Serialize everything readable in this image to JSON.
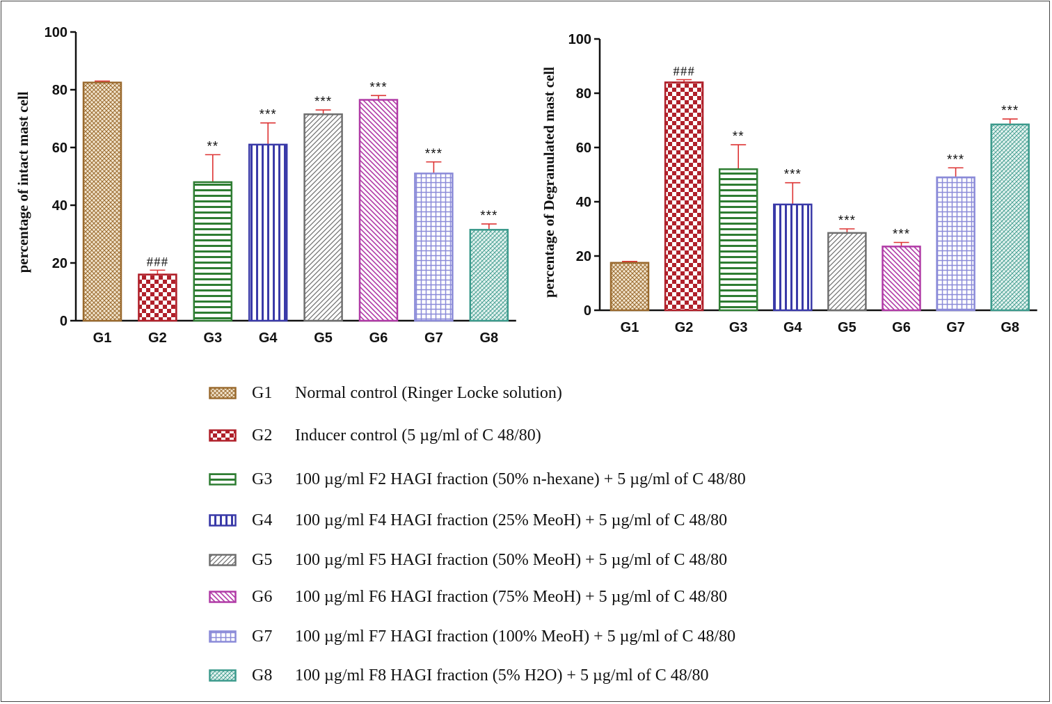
{
  "chart_data": [
    {
      "type": "bar",
      "title": "",
      "xlabel": "",
      "ylabel": "percentage of intact mast cell",
      "ylim": [
        0,
        100
      ],
      "yticks": [
        0,
        20,
        40,
        60,
        80,
        100
      ],
      "categories": [
        "G1",
        "G2",
        "G3",
        "G4",
        "G5",
        "G6",
        "G7",
        "G8"
      ],
      "values": [
        82.5,
        16,
        48,
        61,
        71.5,
        76.5,
        51,
        31.5
      ],
      "errors": [
        0.5,
        1.5,
        9.5,
        7.5,
        1.5,
        1.5,
        4,
        2
      ],
      "annotations": [
        "",
        "###",
        "**",
        "***",
        "***",
        "***",
        "***",
        "***"
      ]
    },
    {
      "type": "bar",
      "title": "",
      "xlabel": "",
      "ylabel": "percentage of Degranulated mast cell",
      "ylim": [
        0,
        100
      ],
      "yticks": [
        0,
        20,
        40,
        60,
        80,
        100
      ],
      "categories": [
        "G1",
        "G2",
        "G3",
        "G4",
        "G5",
        "G6",
        "G7",
        "G8"
      ],
      "values": [
        17.5,
        84,
        52,
        39,
        28.5,
        23.5,
        49,
        68.5
      ],
      "errors": [
        0.5,
        1,
        9,
        8,
        1.5,
        1.5,
        3.5,
        2
      ],
      "annotations": [
        "",
        "###",
        "**",
        "***",
        "***",
        "***",
        "***",
        "***"
      ]
    }
  ],
  "legend": [
    {
      "group": "G1",
      "text": "Normal control (Ringer Locke solution)"
    },
    {
      "group": "G2",
      "text": "Inducer control (5 µg/ml of C 48/80)"
    },
    {
      "group": "G3",
      "text": "100 µg/ml F2 HAGI fraction (50% n-hexane) + 5 µg/ml of C 48/80"
    },
    {
      "group": "G4",
      "text": "100 µg/ml F4 HAGI fraction (25% MeoH) + 5 µg/ml of C 48/80"
    },
    {
      "group": "G5",
      "text": "100 µg/ml F5 HAGI fraction (50% MeoH) + 5 µg/ml of C 48/80"
    },
    {
      "group": "G6",
      "text": "100 µg/ml F6 HAGI fraction (75% MeoH) + 5 µg/ml of C 48/80"
    },
    {
      "group": "G7",
      "text": "100 µg/ml F7 HAGI fraction (100% MeoH) + 5 µg/ml of C 48/80"
    },
    {
      "group": "G8",
      "text": "100 µg/ml F8 HAGI fraction (5% H2O) + 5 µg/ml of C 48/80"
    }
  ],
  "colors": {
    "G1": "#9a6a2e",
    "G2": "#b0202a",
    "G3": "#2e7d32",
    "G4": "#3a3aa8",
    "G5": "#6e6e6e",
    "G6": "#b03aa6",
    "G7": "#8a8ad8",
    "G8": "#3c9a8c",
    "error": "#d33",
    "axis": "#111111"
  }
}
